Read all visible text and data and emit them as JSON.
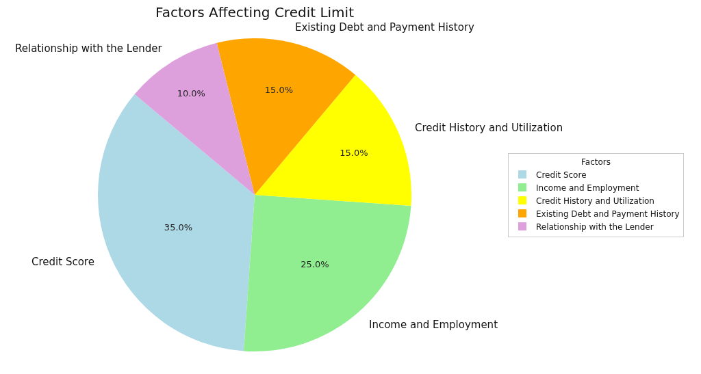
{
  "chart_data": {
    "type": "pie",
    "title": "Factors Affecting Credit Limit",
    "legend_title": "Factors",
    "categories": [
      "Credit Score",
      "Income and Employment",
      "Credit History and Utilization",
      "Existing Debt and Payment History",
      "Relationship with the Lender"
    ],
    "values": [
      35,
      25,
      15,
      15,
      10
    ],
    "colors": [
      "#add8e6",
      "#90ee90",
      "#ffff00",
      "#ffa500",
      "#dda0dd"
    ],
    "value_labels": [
      "35.0%",
      "25.0%",
      "15.0%",
      "15.0%",
      "10.0%"
    ],
    "legend": "right"
  }
}
